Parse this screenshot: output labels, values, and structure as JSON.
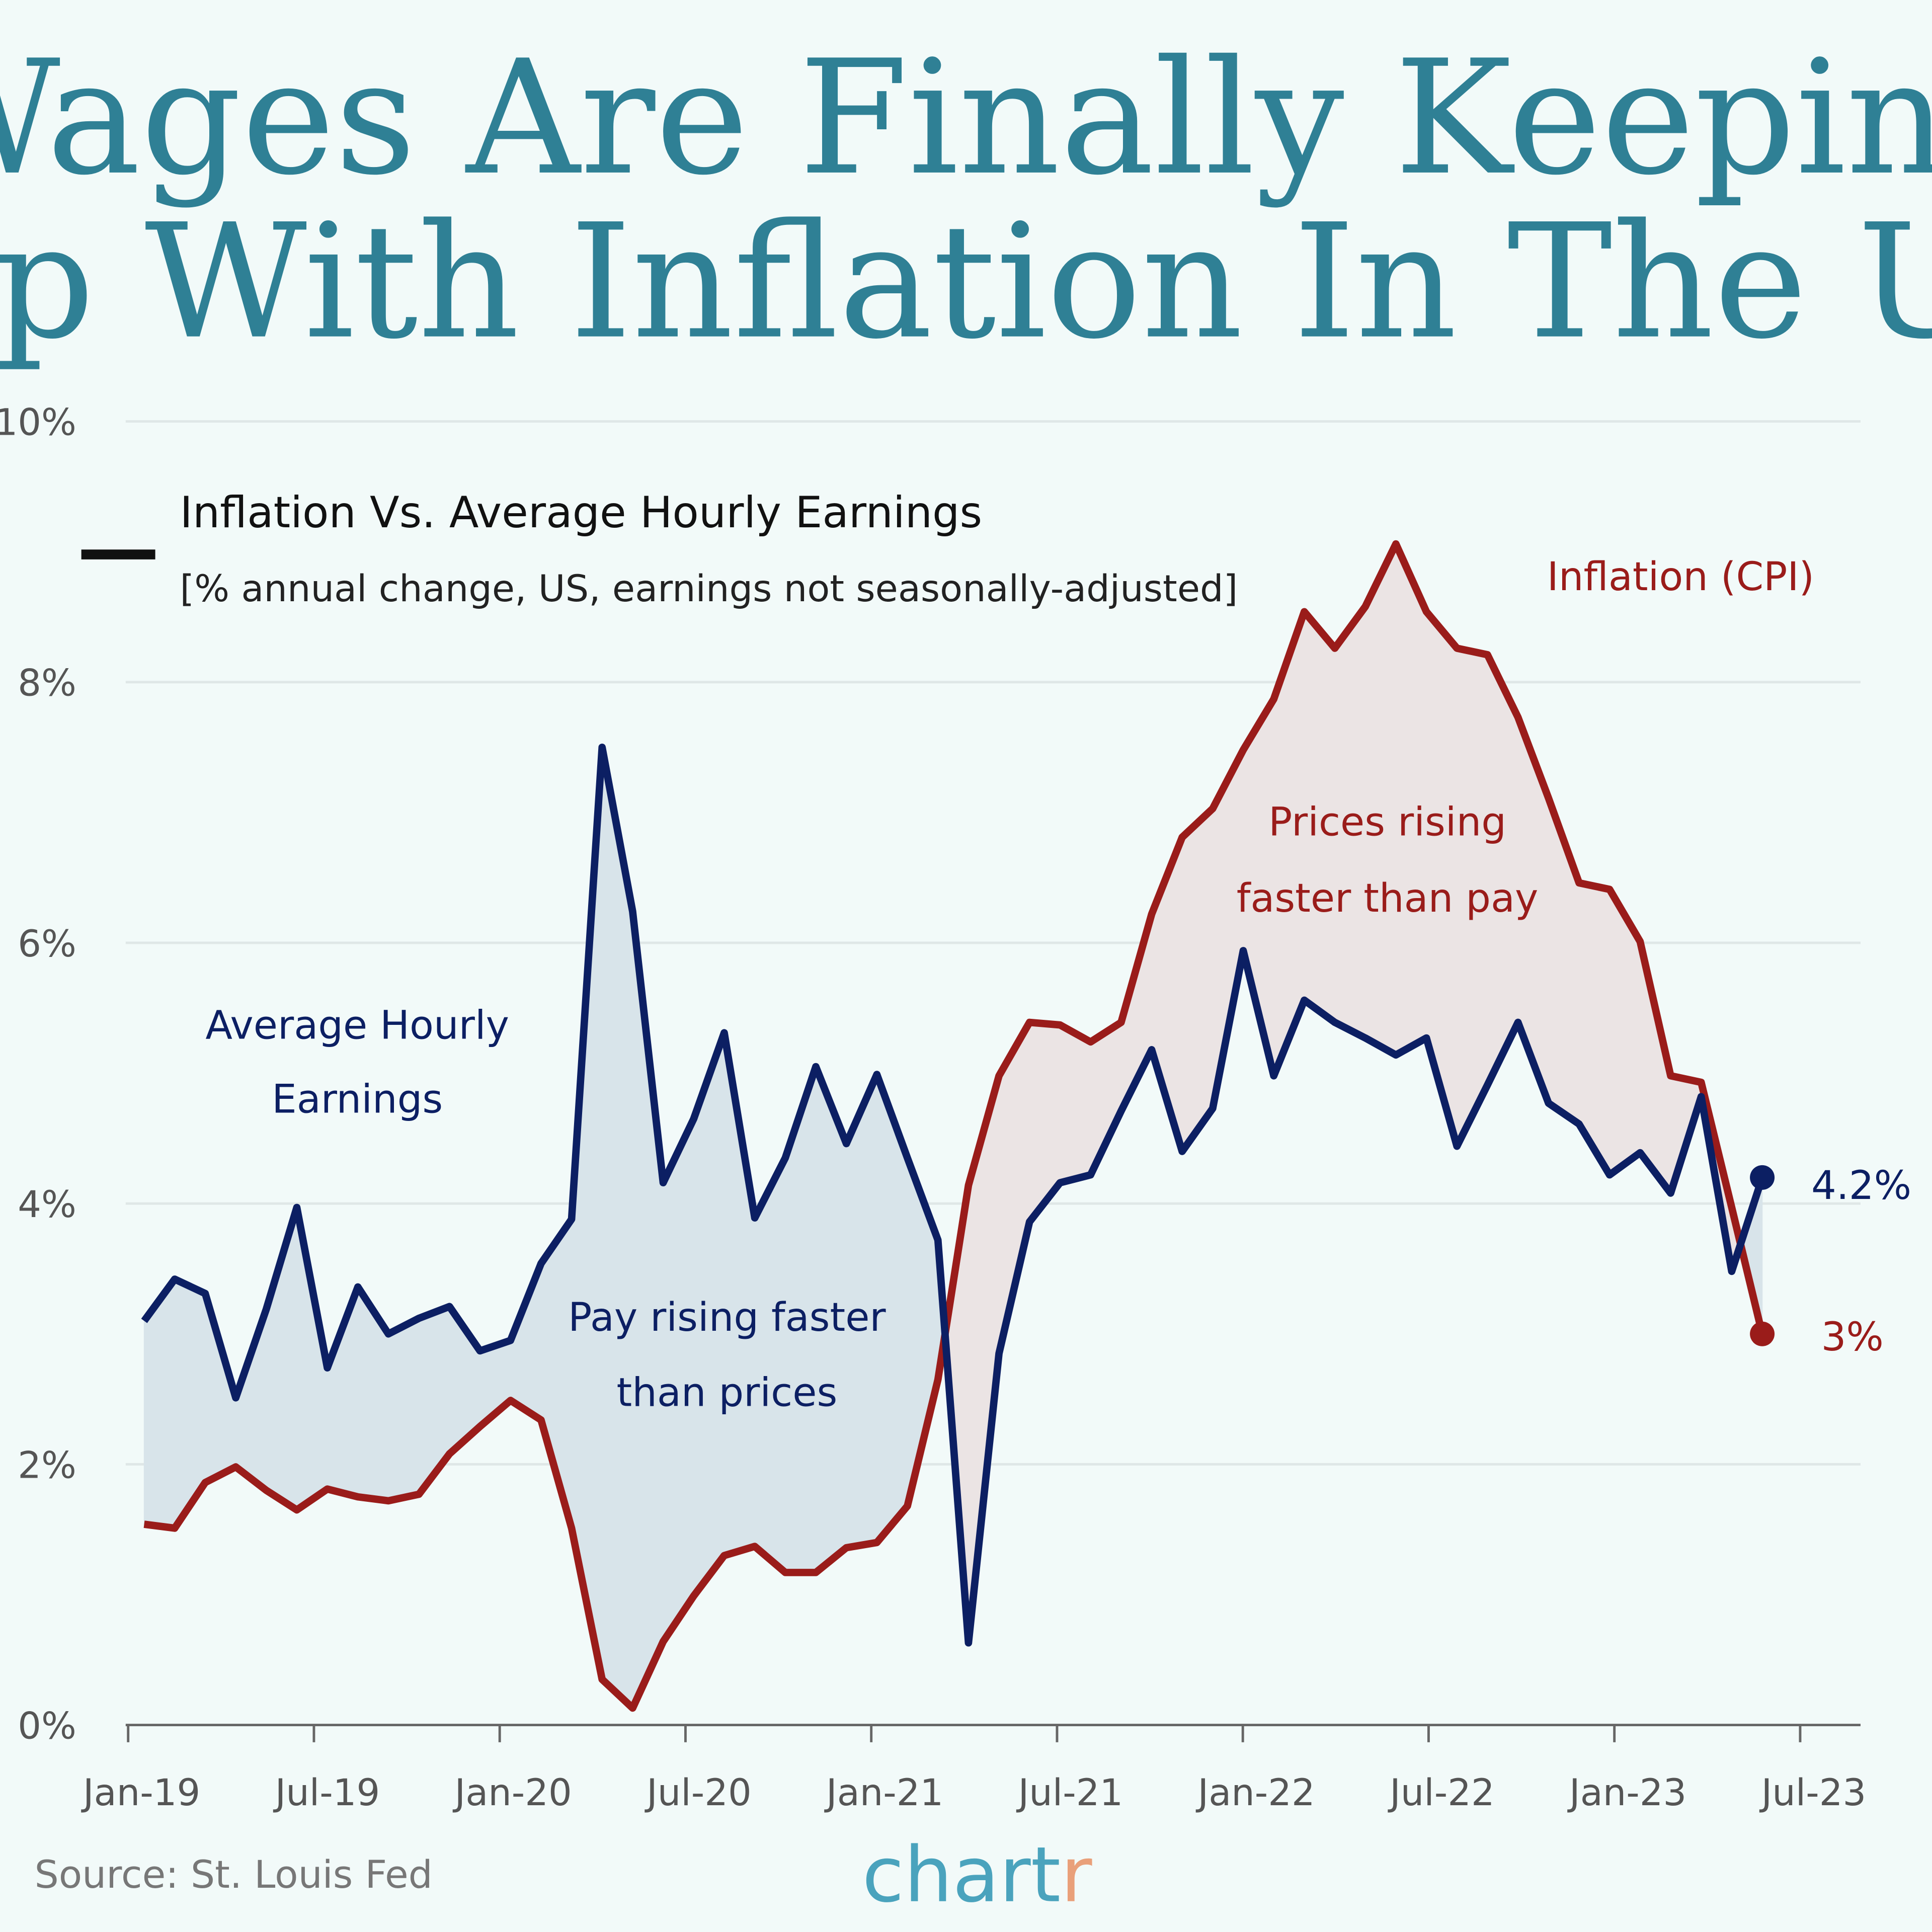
{
  "title_lines": [
    "Wages Are Finally Keeping",
    "Up With Inflation In The US"
  ],
  "colors": {
    "background": "#f2faf9",
    "title": "#2f8095",
    "earnings": "#0c1f63",
    "inflation": "#9a1c1a",
    "earnings_fill": "#d8e4ea",
    "inflation_fill": "#ebe4e4",
    "grid": "#dfe7e7",
    "axis": "#666666",
    "logo": "#4aa3bd",
    "logo_accent": "#e9a07a"
  },
  "legend": {
    "title": "Inflation Vs. Average Hourly Earnings",
    "subtitle": "[% annual change, US, earnings not seasonally-adjusted]"
  },
  "annotations": {
    "earnings_label": [
      "Average Hourly",
      "Earnings"
    ],
    "pay_faster": [
      "Pay rising faster",
      "than prices"
    ],
    "prices_faster": [
      "Prices rising",
      "faster than pay"
    ],
    "inflation_label": "Inflation (CPI)",
    "earnings_end": "4.2%",
    "inflation_end": "3%"
  },
  "source": "Source: St. Louis Fed",
  "logo": {
    "main": "chart",
    "accent": "r"
  },
  "chart_data": {
    "type": "line",
    "x_start": "Jan-19",
    "x_end": "Jun-23",
    "frequency": "monthly",
    "x_ticks": [
      "Jan-19",
      "Jul-19",
      "Jan-20",
      "Jul-20",
      "Jan-21",
      "Jul-21",
      "Jan-22",
      "Jul-22",
      "Jan-23",
      "Jul-23"
    ],
    "y_ticks": [
      "0%",
      "2%",
      "4%",
      "6%",
      "8%",
      "10%"
    ],
    "ylim": [
      0,
      10
    ],
    "grid": true,
    "series": [
      {
        "name": "Average Hourly Earnings",
        "values": [
          3.1,
          3.42,
          3.31,
          2.51,
          3.19,
          3.97,
          2.74,
          3.36,
          3.0,
          3.12,
          3.21,
          2.87,
          2.95,
          3.54,
          3.88,
          7.5,
          6.24,
          4.16,
          4.65,
          5.31,
          3.89,
          4.35,
          5.05,
          4.46,
          4.99,
          4.35,
          3.72,
          0.63,
          2.85,
          3.86,
          4.16,
          4.22,
          4.71,
          5.18,
          4.4,
          4.73,
          5.94,
          4.98,
          5.56,
          5.39,
          5.27,
          5.14,
          5.27,
          4.44,
          4.91,
          5.39,
          4.77,
          4.61,
          4.22,
          4.39,
          4.08,
          4.82,
          3.48,
          4.2
        ]
      },
      {
        "name": "Inflation (CPI)",
        "values": [
          1.54,
          1.51,
          1.86,
          1.98,
          1.8,
          1.65,
          1.81,
          1.75,
          1.72,
          1.77,
          2.08,
          2.29,
          2.49,
          2.34,
          1.51,
          0.35,
          0.13,
          0.64,
          0.99,
          1.3,
          1.37,
          1.17,
          1.17,
          1.36,
          1.4,
          1.68,
          2.65,
          4.14,
          4.98,
          5.39,
          5.37,
          5.24,
          5.39,
          6.22,
          6.81,
          7.03,
          7.48,
          7.87,
          8.54,
          8.26,
          8.58,
          9.06,
          8.54,
          8.26,
          8.21,
          7.73,
          7.11,
          6.46,
          6.41,
          6.01,
          4.98,
          4.93,
          3.97,
          3.0
        ]
      }
    ]
  }
}
